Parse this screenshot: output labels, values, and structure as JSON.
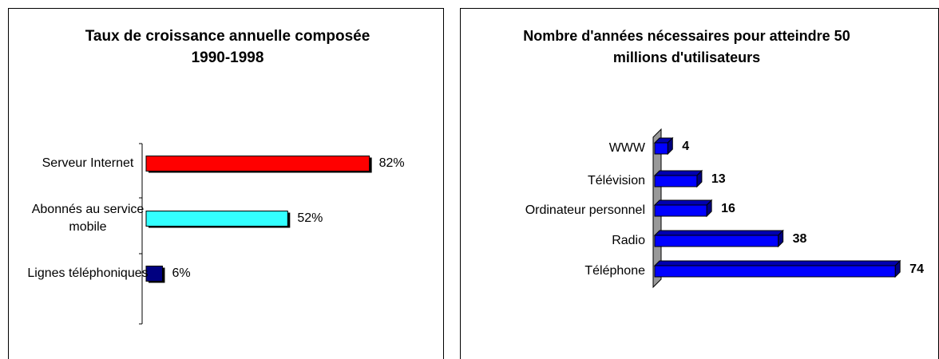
{
  "chart_data": [
    {
      "type": "bar",
      "title": "Taux de croissance annuelle composée 1990-1998",
      "categories": [
        "Serveur Internet",
        "Abonnés au service mobile",
        "Lignes téléphoniques"
      ],
      "values": [
        82,
        52,
        6
      ],
      "value_labels": [
        "82%",
        "52%",
        "6%"
      ],
      "colors": [
        "#ff0000",
        "#33ffff",
        "#000080"
      ]
    },
    {
      "type": "bar3d",
      "title": "Nombre d'années nécessaires pour atteindre 50 millions d'utilisateurs",
      "categories": [
        "WWW",
        "Télévision",
        "Ordinateur personnel",
        "Radio",
        "Téléphone"
      ],
      "values": [
        4,
        13,
        16,
        38,
        74
      ],
      "color": "#0000ff"
    }
  ]
}
